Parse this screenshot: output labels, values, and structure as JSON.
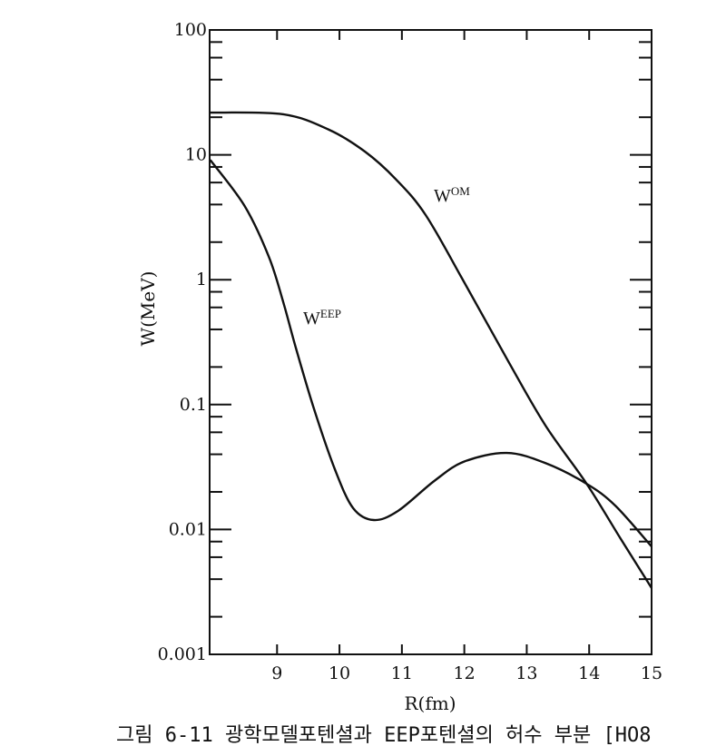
{
  "chart_data": {
    "type": "line",
    "title": "",
    "xlabel": "R(fm)",
    "ylabel": "W(MeV)",
    "xscale": "linear",
    "yscale": "log",
    "xlim": [
      7.92,
      15
    ],
    "ylim": [
      0.001,
      100
    ],
    "x_ticks": [
      9,
      10,
      11,
      12,
      13,
      14,
      15
    ],
    "x_tick_labels": [
      "9",
      "10",
      "11",
      "12",
      "13",
      "14",
      "15"
    ],
    "y_ticks": [
      100,
      10,
      1,
      0.1,
      0.01,
      0.001
    ],
    "y_tick_labels": [
      "100",
      "10",
      "1",
      "0.1",
      "0.01",
      "0.001"
    ],
    "grid": false,
    "series": [
      {
        "name": "W^OM",
        "label_main": "W",
        "label_sup": "OM",
        "x": [
          7.93,
          9.1,
          9.83,
          10.41,
          10.9,
          11.38,
          12.0,
          12.72,
          13.3,
          13.96,
          14.5,
          15.0
        ],
        "y": [
          21.8,
          21.1,
          15.9,
          10.6,
          6.4,
          3.3,
          0.95,
          0.215,
          0.068,
          0.0232,
          0.0085,
          0.0034
        ]
      },
      {
        "name": "W^EEP",
        "label_main": "W",
        "label_sup": "EEP",
        "x": [
          7.93,
          8.48,
          8.87,
          9.1,
          9.3,
          9.59,
          9.93,
          10.22,
          10.55,
          10.94,
          11.52,
          12.0,
          12.68,
          13.3,
          13.96,
          14.42,
          15.0
        ],
        "y": [
          9.1,
          3.9,
          1.52,
          0.66,
          0.286,
          0.093,
          0.03,
          0.0148,
          0.0119,
          0.0141,
          0.0245,
          0.035,
          0.041,
          0.034,
          0.0232,
          0.0155,
          0.0073
        ]
      }
    ],
    "caption": "그림 6-11 광학모델포텐셜과 EEP포텐셜의 허수 부분 [HO8"
  },
  "colors": {
    "line": "#111111",
    "background": "#ffffff"
  }
}
